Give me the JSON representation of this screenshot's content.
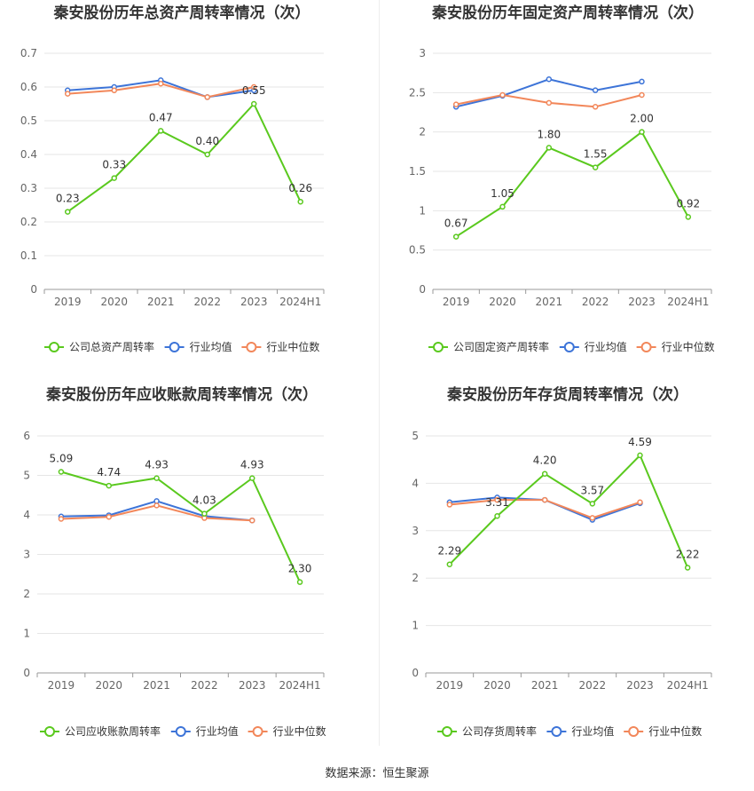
{
  "colors": {
    "company": "#5ac91e",
    "industry_avg": "#3d74d8",
    "industry_median": "#f2875a",
    "grid": "#e6e6e6",
    "axis": "#666666",
    "text": "#333333"
  },
  "source_text": "数据来源：恒生聚源",
  "chart_data": [
    {
      "type": "line",
      "title": "秦安股份历年总资产周转率情况（次）",
      "categories": [
        "2019",
        "2020",
        "2021",
        "2022",
        "2023",
        "2024H1"
      ],
      "ylim": [
        0,
        0.7
      ],
      "yticks": [
        "0",
        "0.1",
        "0.2",
        "0.3",
        "0.4",
        "0.5",
        "0.6",
        "0.7"
      ],
      "series": [
        {
          "name": "公司总资产周转率",
          "key": "company",
          "values": [
            0.23,
            0.33,
            0.47,
            0.4,
            0.55,
            0.26
          ],
          "labels": [
            "0.23",
            "0.33",
            "0.47",
            "0.40",
            "0.55",
            "0.26"
          ]
        },
        {
          "name": "行业均值",
          "key": "industry_avg",
          "values": [
            0.59,
            0.6,
            0.62,
            0.57,
            0.59,
            null
          ]
        },
        {
          "name": "行业中位数",
          "key": "industry_median",
          "values": [
            0.58,
            0.59,
            0.61,
            0.57,
            0.6,
            null
          ]
        }
      ]
    },
    {
      "type": "line",
      "title": "秦安股份历年固定资产周转率情况（次）",
      "categories": [
        "2019",
        "2020",
        "2021",
        "2022",
        "2023",
        "2024H1"
      ],
      "ylim": [
        0,
        3
      ],
      "yticks": [
        "0",
        "0.5",
        "1",
        "1.5",
        "2",
        "2.5",
        "3"
      ],
      "series": [
        {
          "name": "公司固定资产周转率",
          "key": "company",
          "values": [
            0.67,
            1.05,
            1.8,
            1.55,
            2.0,
            0.92
          ],
          "labels": [
            "0.67",
            "1.05",
            "1.80",
            "1.55",
            "2.00",
            "0.92"
          ]
        },
        {
          "name": "行业均值",
          "key": "industry_avg",
          "values": [
            2.32,
            2.46,
            2.67,
            2.53,
            2.64,
            null
          ]
        },
        {
          "name": "行业中位数",
          "key": "industry_median",
          "values": [
            2.35,
            2.47,
            2.37,
            2.32,
            2.47,
            null
          ]
        }
      ]
    },
    {
      "type": "line",
      "title": "秦安股份历年应收账款周转率情况（次）",
      "categories": [
        "2019",
        "2020",
        "2021",
        "2022",
        "2023",
        "2024H1"
      ],
      "ylim": [
        0,
        6
      ],
      "yticks": [
        "0",
        "1",
        "2",
        "3",
        "4",
        "5",
        "6"
      ],
      "series": [
        {
          "name": "公司应收账款周转率",
          "key": "company",
          "values": [
            5.09,
            4.74,
            4.93,
            4.03,
            4.93,
            2.3
          ],
          "labels": [
            "5.09",
            "4.74",
            "4.93",
            "4.03",
            "4.93",
            "2.30"
          ]
        },
        {
          "name": "行业均值",
          "key": "industry_avg",
          "values": [
            3.96,
            3.99,
            4.35,
            3.97,
            3.86,
            null
          ]
        },
        {
          "name": "行业中位数",
          "key": "industry_median",
          "values": [
            3.9,
            3.95,
            4.24,
            3.92,
            3.86,
            null
          ]
        }
      ]
    },
    {
      "type": "line",
      "title": "秦安股份历年存货周转率情况（次）",
      "categories": [
        "2019",
        "2020",
        "2021",
        "2022",
        "2023",
        "2024H1"
      ],
      "ylim": [
        0,
        5
      ],
      "yticks": [
        "0",
        "1",
        "2",
        "3",
        "4",
        "5"
      ],
      "series": [
        {
          "name": "公司存货周转率",
          "key": "company",
          "values": [
            2.29,
            3.31,
            4.2,
            3.57,
            4.59,
            2.22
          ],
          "labels": [
            "2.29",
            "3.31",
            "4.20",
            "3.57",
            "4.59",
            "2.22"
          ]
        },
        {
          "name": "行业均值",
          "key": "industry_avg",
          "values": [
            3.6,
            3.7,
            3.65,
            3.23,
            3.58,
            null
          ]
        },
        {
          "name": "行业中位数",
          "key": "industry_median",
          "values": [
            3.55,
            3.65,
            3.65,
            3.27,
            3.6,
            null
          ]
        }
      ]
    }
  ]
}
